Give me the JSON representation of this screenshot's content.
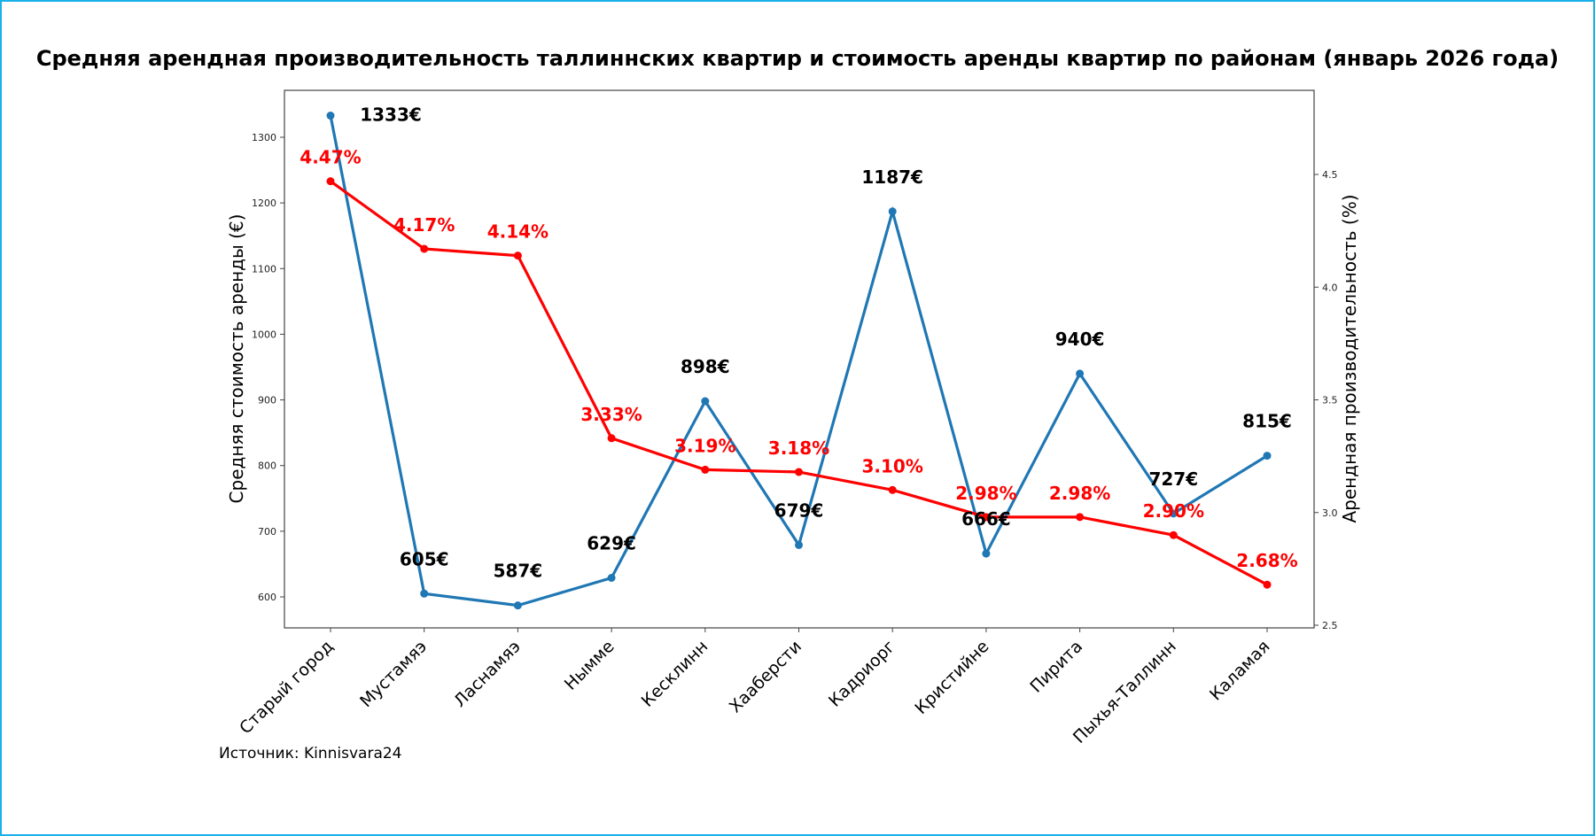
{
  "chart_data": {
    "type": "line",
    "title": "Средняя арендная производительность таллиннских квартир и стоимость аренды квартир по районам (январь 2026 года)",
    "categories": [
      "Старый город",
      "Мустамяэ",
      "Ласнамяэ",
      "Нымме",
      "Кесклинн",
      "Хааберсти",
      "Кадриорг",
      "Кристийне",
      "Пирита",
      "Пыхья-Таллинн",
      "Каламая"
    ],
    "series": [
      {
        "name": "Средняя стоимость аренды (€)",
        "axis": "left",
        "color": "#1f77b4",
        "values": [
          1333,
          605,
          587,
          629,
          898,
          679,
          1187,
          666,
          940,
          727,
          815
        ],
        "labels": [
          "1333€",
          "605€",
          "587€",
          "629€",
          "898€",
          "679€",
          "1187€",
          "666€",
          "940€",
          "727€",
          "815€"
        ]
      },
      {
        "name": "Арендная производительность (%)",
        "axis": "right",
        "color": "#ff0000",
        "values": [
          4.47,
          4.17,
          4.14,
          3.33,
          3.19,
          3.18,
          3.1,
          2.98,
          2.98,
          2.9,
          2.68
        ],
        "labels": [
          "4.47%",
          "4.17%",
          "4.14%",
          "3.33%",
          "3.19%",
          "3.18%",
          "3.10%",
          "2.98%",
          "2.98%",
          "2.90%",
          "2.68%"
        ]
      }
    ],
    "ylabel": "Средняя стоимость аренды (€)",
    "ylabel_right": "Арендная производительность (%)",
    "ylim": [
      550,
      1370
    ],
    "ylim_right": [
      2.49,
      4.81
    ],
    "yticks": [
      600,
      700,
      800,
      900,
      1000,
      1100,
      1200,
      1300
    ],
    "yticks_right": [
      "2.5",
      "3.0",
      "3.5",
      "4.0",
      "4.5"
    ],
    "grid": false,
    "source": "Источник: Kinnisvara24"
  }
}
